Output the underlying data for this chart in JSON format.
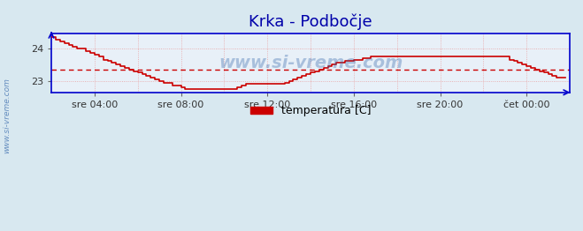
{
  "title": "Krka - Podbočje",
  "background_color": "#d8e8f0",
  "plot_bg_color": "#e8f0f8",
  "line_color": "#cc0000",
  "axis_color": "#0000cc",
  "avg_value": 23.35,
  "ylim": [
    22.65,
    24.45
  ],
  "yticks": [
    23.0,
    24.0
  ],
  "title_color": "#0000aa",
  "title_fontsize": 13,
  "watermark": "www.si-vreme.com",
  "legend_label": "temperatura [C]",
  "legend_color": "#cc0000",
  "time_points": [
    0,
    12,
    24,
    36,
    48,
    60,
    72,
    84,
    96,
    108,
    120,
    132,
    144,
    156,
    168,
    180,
    192,
    204,
    216,
    228,
    240,
    252,
    264,
    276,
    288,
    300,
    312,
    324,
    336,
    348,
    360,
    372,
    384,
    396,
    408,
    420,
    432,
    444,
    456,
    468,
    480,
    492,
    504,
    516,
    528,
    540,
    552,
    564,
    576,
    588,
    600,
    612,
    624,
    636,
    648,
    660,
    672,
    684,
    696,
    708,
    720,
    732,
    744,
    756,
    768,
    780,
    792,
    804,
    816,
    828,
    840,
    852,
    864,
    876,
    888,
    900,
    912,
    924,
    936,
    948,
    960,
    972,
    984,
    996,
    1008,
    1020,
    1032,
    1044,
    1056,
    1068,
    1080,
    1092,
    1104,
    1116,
    1128,
    1140,
    1152,
    1164,
    1176,
    1188,
    1200,
    1212,
    1224,
    1236,
    1248,
    1260,
    1272,
    1284,
    1296,
    1308,
    1320,
    1332,
    1344,
    1356,
    1368,
    1380,
    1392,
    1404,
    1416,
    1428
  ],
  "temp_values": [
    24.35,
    24.25,
    24.2,
    24.15,
    24.1,
    24.05,
    24.0,
    24.0,
    23.9,
    23.85,
    23.8,
    23.75,
    23.65,
    23.6,
    23.55,
    23.5,
    23.45,
    23.4,
    23.35,
    23.3,
    23.25,
    23.2,
    23.15,
    23.1,
    23.05,
    23.0,
    22.95,
    22.95,
    22.85,
    22.85,
    22.8,
    22.75,
    22.75,
    22.75,
    22.75,
    22.75,
    22.75,
    22.75,
    22.75,
    22.75,
    22.75,
    22.75,
    22.75,
    22.8,
    22.85,
    22.9,
    22.9,
    22.9,
    22.9,
    22.9,
    22.9,
    22.9,
    22.9,
    22.9,
    22.95,
    23.0,
    23.05,
    23.1,
    23.15,
    23.2,
    23.25,
    23.3,
    23.35,
    23.4,
    23.45,
    23.5,
    23.55,
    23.55,
    23.6,
    23.6,
    23.65,
    23.65,
    23.7,
    23.7,
    23.75,
    23.75,
    23.75,
    23.75,
    23.75,
    23.75,
    23.75,
    23.75,
    23.75,
    23.75,
    23.75,
    23.75,
    23.75,
    23.75,
    23.75,
    23.75,
    23.75,
    23.75,
    23.75,
    23.75,
    23.75,
    23.75,
    23.75,
    23.75,
    23.75,
    23.75,
    23.75,
    23.75,
    23.75,
    23.75,
    23.75,
    23.75,
    23.65,
    23.6,
    23.55,
    23.5,
    23.45,
    23.4,
    23.35,
    23.3,
    23.25,
    23.2,
    23.15,
    23.1,
    23.1,
    23.1,
    23.1
  ],
  "xtick_selected": [
    120,
    360,
    600,
    840,
    1080,
    1320
  ],
  "xtick_labels": [
    "sre 04:00",
    "sre 08:00",
    "sre 12:00",
    "sre 16:00",
    "sre 20:00",
    "čet 00:00"
  ],
  "grid_xticks": [
    120,
    240,
    360,
    480,
    600,
    720,
    840,
    960,
    1080,
    1200,
    1320
  ]
}
